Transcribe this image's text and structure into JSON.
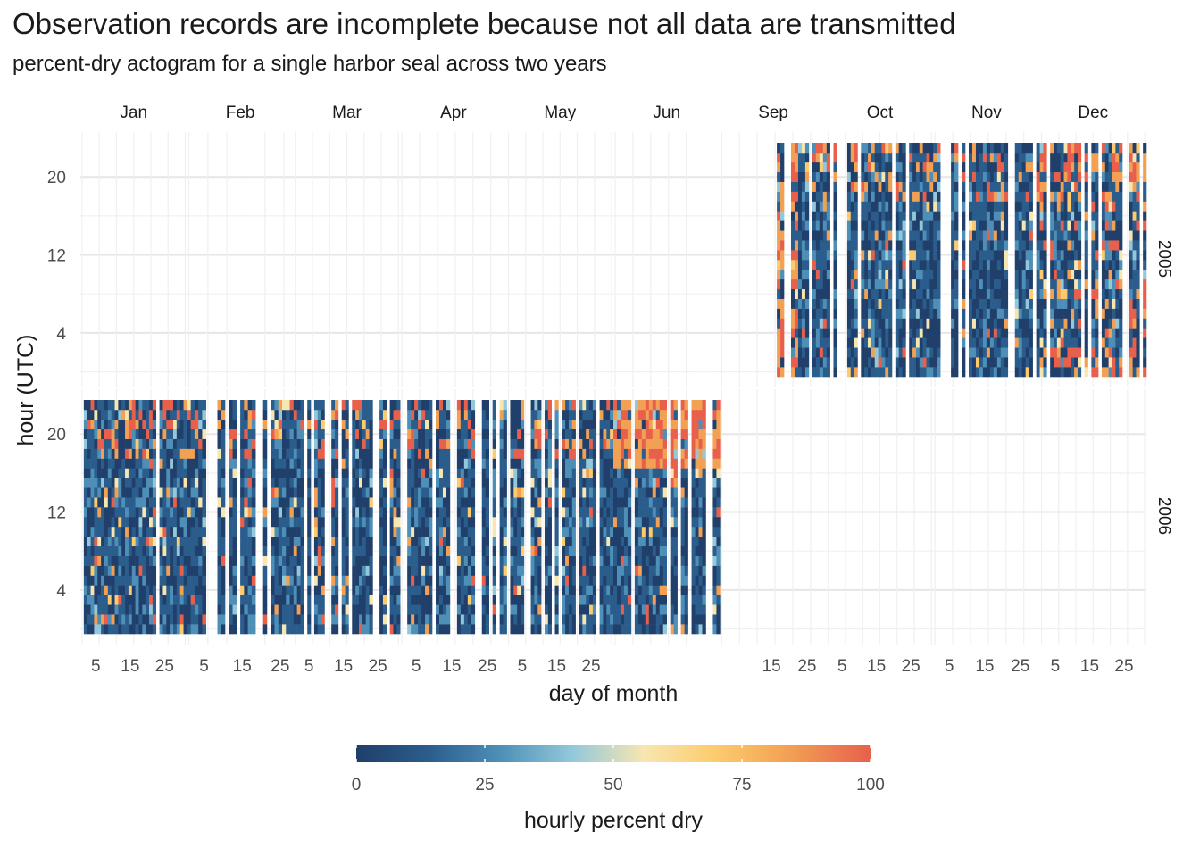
{
  "title": "Observation records are incomplete because not all data are transmitted",
  "subtitle": "percent-dry actogram for a single harbor seal across two years",
  "chart_data": {
    "type": "heatmap",
    "title": "Observation records are incomplete because not all data are transmitted",
    "subtitle": "percent-dry actogram for a single harbor seal across two years",
    "xlabel": "day of month",
    "ylabel": "hour (UTC)",
    "x_tick_labels": [
      "5",
      "15",
      "25"
    ],
    "y_tick_labels": [
      "4",
      "12",
      "20"
    ],
    "y_range": [
      0,
      23
    ],
    "months": [
      "Jan",
      "Feb",
      "Mar",
      "Apr",
      "May",
      "Jun",
      "Sep",
      "Oct",
      "Nov",
      "Dec"
    ],
    "facets": [
      {
        "year": "2005",
        "months": [
          "Sep",
          "Oct",
          "Nov",
          "Dec"
        ],
        "first_observed": "Sep 15",
        "last_observed": "Dec 31"
      },
      {
        "year": "2006",
        "months": [
          "Jan",
          "Feb",
          "Mar",
          "Apr",
          "May",
          "Jun"
        ],
        "first_observed": "Jan 1",
        "last_observed": "Jun 30"
      }
    ],
    "grid": true,
    "legend": {
      "title": "hourly percent dry",
      "position": "bottom",
      "range": [
        0,
        100
      ],
      "breaks": [
        "0",
        "25",
        "50",
        "75",
        "100"
      ],
      "colors": [
        "#203f6a",
        "#2b5d8c",
        "#4e8fb8",
        "#93c8db",
        "#f8e6b0",
        "#fdcb6d",
        "#f2a154",
        "#e8604c"
      ]
    },
    "note": "Hourly cells (day x hour) colored by percent dry; many days are missing because not all data were transmitted. Blue (mostly wet) dominates; red/orange (dry) appears mainly late-day in Sep and Dec 2005 and in late May-June 2006."
  }
}
